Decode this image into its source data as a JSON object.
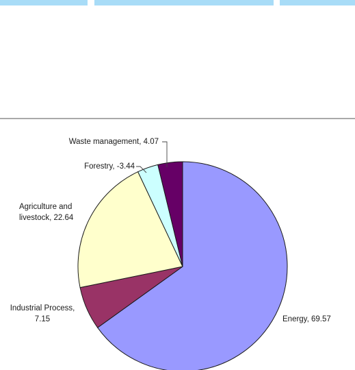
{
  "tabs": [
    "",
    "",
    ""
  ],
  "chart_data": {
    "type": "pie",
    "title": "",
    "slices": [
      {
        "label": "Energy",
        "value": 69.57,
        "value_text": "69.57",
        "color": "#9999ff"
      },
      {
        "label": "Industrial Process",
        "value": 7.15,
        "value_text": "7.15",
        "color": "#993366"
      },
      {
        "label": "Agriculture and livestock",
        "value": 22.64,
        "value_text": "22.64",
        "color": "#ffffcc"
      },
      {
        "label": "Forestry",
        "value": -3.44,
        "value_text": "-3.44",
        "color": "#ccffff"
      },
      {
        "label": "Waste management",
        "value": 4.07,
        "value_text": "4.07",
        "color": "#660066"
      }
    ],
    "label_texts": {
      "waste": "Waste management, 4.07",
      "forestry": "Forestry, -3.44",
      "agriculture_line1": "Agriculture and",
      "agriculture_line2": "livestock, 22.64",
      "industrial_line1": "Industrial Process,",
      "industrial_line2": "7.15",
      "energy": "Energy, 69.57"
    },
    "start_angle": "12 o'clock",
    "direction": "clockwise",
    "legend": "none"
  }
}
